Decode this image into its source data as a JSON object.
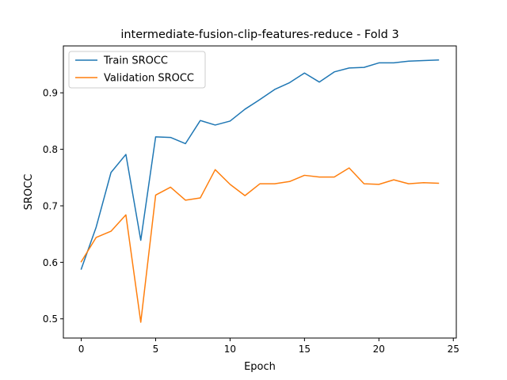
{
  "chart_data": {
    "type": "line",
    "title": "intermediate-fusion-clip-features-reduce - Fold 3",
    "xlabel": "Epoch",
    "ylabel": "SROCC",
    "xlim": [
      -1.2,
      25.2
    ],
    "ylim": [
      0.466,
      0.983
    ],
    "xticks": [
      0,
      5,
      10,
      15,
      20,
      25
    ],
    "yticks": [
      0.5,
      0.6,
      0.7,
      0.8,
      0.9
    ],
    "grid": false,
    "legend_position": "top-left",
    "x": [
      0,
      1,
      2,
      3,
      4,
      5,
      6,
      7,
      8,
      9,
      10,
      11,
      12,
      13,
      14,
      15,
      16,
      17,
      18,
      19,
      20,
      21,
      22,
      23,
      24
    ],
    "series": [
      {
        "name": "Train SROCC",
        "color": "#1f77b4",
        "values": [
          0.588,
          0.662,
          0.759,
          0.791,
          0.639,
          0.822,
          0.821,
          0.81,
          0.851,
          0.843,
          0.85,
          0.871,
          0.888,
          0.906,
          0.918,
          0.935,
          0.919,
          0.937,
          0.944,
          0.945,
          0.953,
          0.953,
          0.956,
          0.957,
          0.958
        ]
      },
      {
        "name": "Validation SROCC",
        "color": "#ff7f0e",
        "values": [
          0.601,
          0.644,
          0.655,
          0.684,
          0.494,
          0.719,
          0.733,
          0.71,
          0.714,
          0.764,
          0.738,
          0.718,
          0.739,
          0.739,
          0.743,
          0.754,
          0.751,
          0.751,
          0.767,
          0.739,
          0.738,
          0.746,
          0.739,
          0.741,
          0.74
        ]
      }
    ]
  }
}
